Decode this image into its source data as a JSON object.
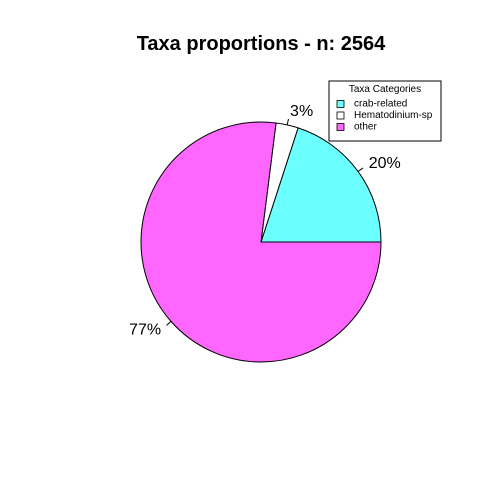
{
  "chart_data": {
    "type": "pie",
    "title": "Taxa proportions - n: 2564",
    "categories": [
      "crab-related",
      "Hematodinium-sp",
      "other"
    ],
    "values": [
      20,
      3,
      77
    ],
    "labels": [
      "20%",
      "3%",
      "77%"
    ],
    "colors": [
      "#6cffff",
      "#ffffff",
      "#ff66ff"
    ],
    "legend": {
      "title": "Taxa Categories",
      "placement": "top-right"
    }
  }
}
